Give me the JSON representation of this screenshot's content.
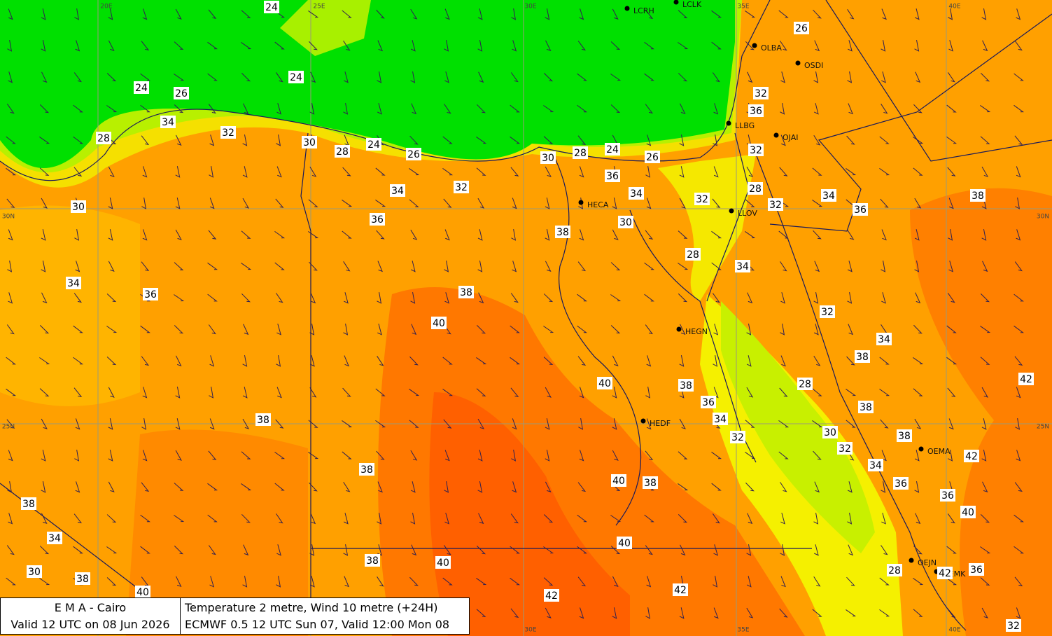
{
  "header": {
    "left": [
      "E M A  -  Cairo",
      "Valid 12 UTC on 08 Jun 2026"
    ],
    "right": [
      "Temperature  2 metre, Wind  10 metre (+24H)",
      "ECMWF 0.5 12 UTC Sun 07, Valid 12:00 Mon 08"
    ]
  },
  "grid_labels": [
    "20E",
    "25E",
    "30E",
    "35E",
    "40E",
    "30N",
    "25N",
    "30N",
    "25N",
    "30E",
    "35E",
    "40E"
  ],
  "stations": [
    "LCRH",
    "LCLK",
    "OLBA",
    "OSDI",
    "LLBG",
    "OJAI",
    "HECA",
    "LLOV",
    "HEGN",
    "HEDF",
    "OEMA",
    "OEJN",
    "OEMK"
  ],
  "contour_labels": [
    24,
    26,
    24,
    24,
    26,
    34,
    32,
    28,
    30,
    28,
    24,
    26,
    30,
    28,
    24,
    26,
    32,
    36,
    32,
    28,
    32,
    34,
    36,
    38,
    34,
    32,
    36,
    34,
    32,
    30,
    36,
    38,
    30,
    28,
    34,
    34,
    36,
    38,
    40,
    32,
    34,
    38,
    28,
    42,
    40,
    38,
    36,
    34,
    38,
    38,
    32,
    30,
    32,
    38,
    42,
    34,
    38,
    40,
    38,
    36,
    36,
    40,
    38,
    34,
    40,
    38,
    40,
    30,
    38,
    28,
    36,
    42,
    40,
    42,
    42,
    32
  ]
}
